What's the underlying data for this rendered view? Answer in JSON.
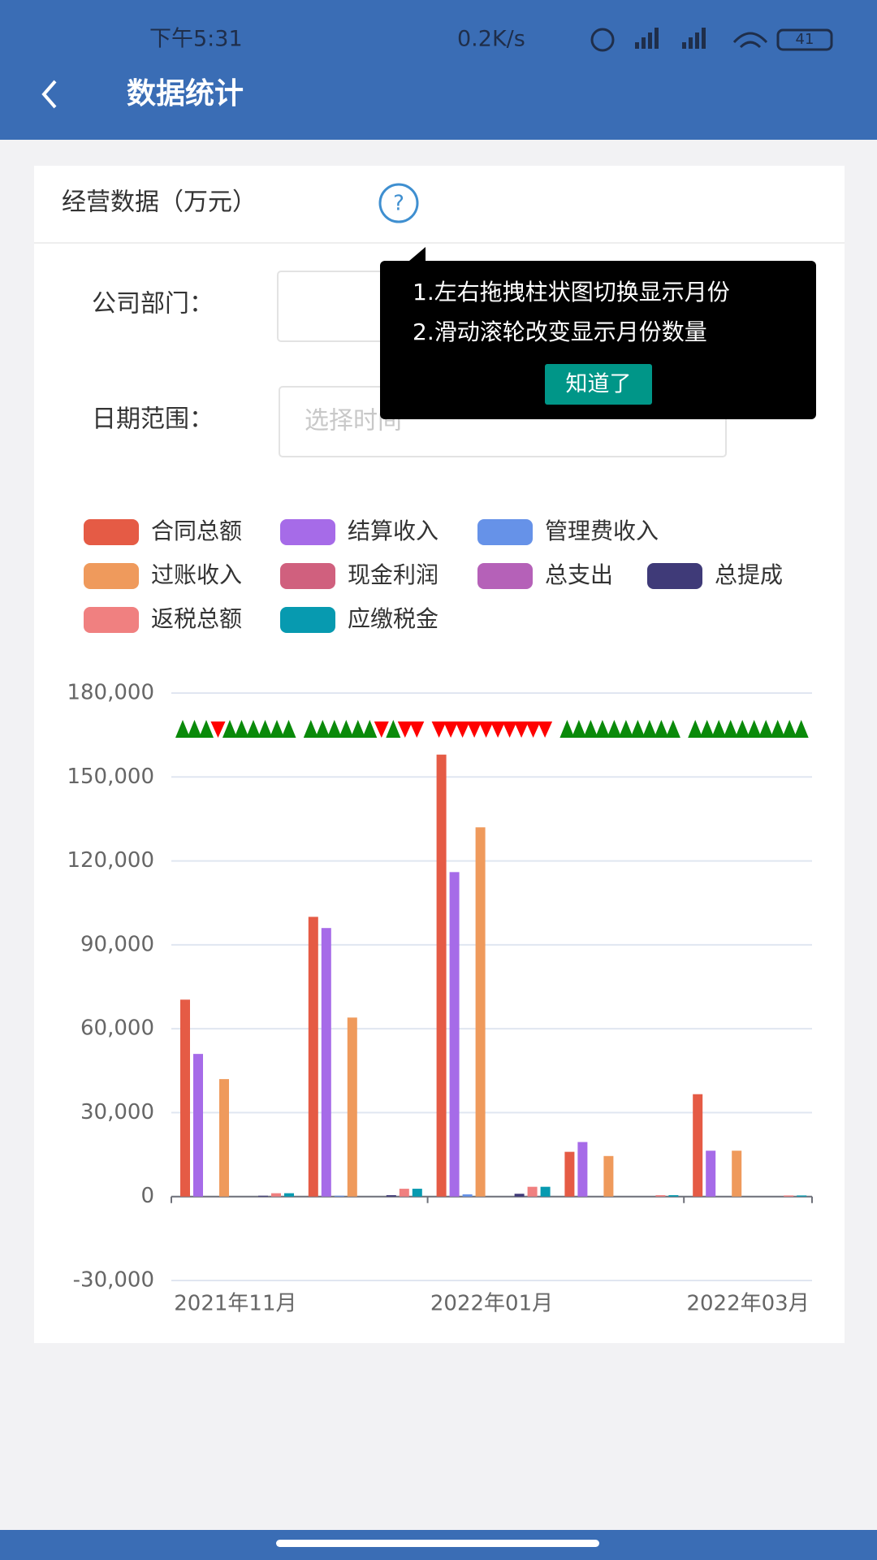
{
  "status_bar": {
    "time": "下午5:31",
    "speed": "0.2K/s",
    "battery": "41"
  },
  "header": {
    "title": "数据统计"
  },
  "card": {
    "title": "经营数据（万元）",
    "help": "?"
  },
  "form": {
    "department_label": "公司部门：",
    "date_label": "日期范围：",
    "date_placeholder": "选择时间"
  },
  "tooltip": {
    "lines": [
      "1.左右拖拽柱状图切换显示月份",
      "2.滑动滚轮改变显示月份数量"
    ],
    "button": "知道了"
  },
  "chart_data": {
    "type": "bar",
    "categories": [
      "2021年11月",
      null,
      "2022年01月",
      null,
      "2022年03月"
    ],
    "series": [
      {
        "name": "合同总额",
        "color": "#e55b45",
        "values": [
          70400,
          100000,
          158000,
          16000,
          36600
        ]
      },
      {
        "name": "结算收入",
        "color": "#a66be8",
        "values": [
          51000,
          96000,
          116000,
          19500,
          16400
        ]
      },
      {
        "name": "管理费收入",
        "color": "#6692e8",
        "values": [
          0,
          300,
          800,
          0,
          0
        ]
      },
      {
        "name": "过账收入",
        "color": "#ef9a5c",
        "values": [
          42000,
          64000,
          132000,
          14500,
          16400
        ]
      },
      {
        "name": "现金利润",
        "color": "#d0607e",
        "values": [
          0,
          0,
          0,
          0,
          0
        ]
      },
      {
        "name": "总支出",
        "color": "#b561b8",
        "values": [
          0,
          0,
          0,
          0,
          0
        ]
      },
      {
        "name": "总提成",
        "color": "#3f3a78",
        "values": [
          300,
          500,
          1000,
          0,
          0
        ]
      },
      {
        "name": "返税总额",
        "color": "#f08080",
        "values": [
          1200,
          2800,
          3500,
          500,
          400
        ]
      },
      {
        "name": "应缴税金",
        "color": "#079ab0",
        "values": [
          1200,
          2800,
          3500,
          500,
          400
        ]
      }
    ],
    "ylim": [
      -30000,
      180000
    ],
    "yticks": [
      {
        "value": -30000,
        "label": "-30,000"
      },
      0,
      {
        "value": 30000,
        "label": "30,000"
      },
      {
        "value": 60000,
        "label": "60,000"
      },
      {
        "value": 90000,
        "label": "90,000"
      },
      {
        "value": 120000,
        "label": "120,000"
      },
      {
        "value": 150000,
        "label": "150,000"
      },
      {
        "value": 180000,
        "label": "180,000"
      }
    ],
    "grid": true
  }
}
